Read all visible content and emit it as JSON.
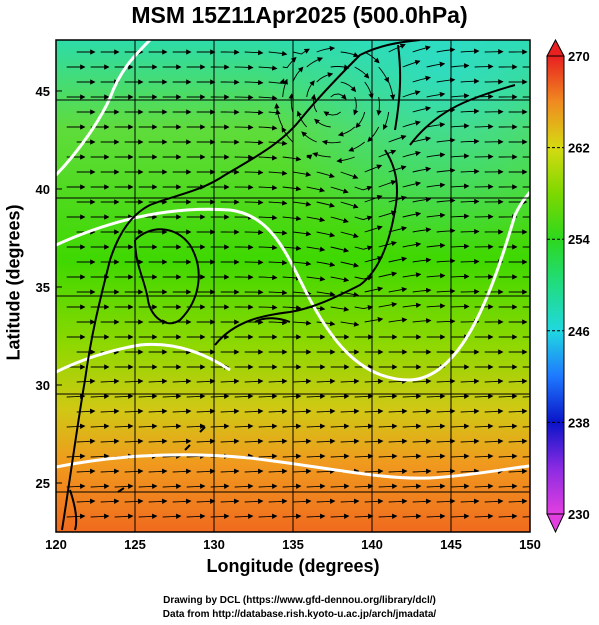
{
  "title": "MSM 15Z11Apr2025 (500.0hPa)",
  "xlabel": "Longitude (degrees)",
  "ylabel": "Latitude  (degrees)",
  "credit_line1": "Drawing by DCL (https://www.gfd-dennou.org/library/dcl/)",
  "credit_line2": "Data from http://database.rish.kyoto-u.ac.jp/arch/jmadata/",
  "colors": {
    "warm": "#f07a1e",
    "mid": "#3fd800",
    "cool": "#2ddca8",
    "contour": "#ffffff",
    "coast": "#000000"
  },
  "chart_data": {
    "type": "heatmap",
    "field": "500hPa temperature (K) with wind streamlines",
    "xlim": [
      120,
      150
    ],
    "ylim": [
      22.5,
      47.6
    ],
    "x_ticks": [
      120,
      125,
      130,
      135,
      140,
      145,
      150
    ],
    "y_ticks": [
      25,
      30,
      35,
      40,
      45
    ],
    "grid": true,
    "colorbar": {
      "min": 230,
      "max": 270,
      "tick_labels": [
        270,
        262,
        254,
        246,
        238,
        230
      ],
      "stops": [
        {
          "value": 230,
          "color": "#e23fe0"
        },
        {
          "value": 234,
          "color": "#8a2be2"
        },
        {
          "value": 238,
          "color": "#0a14c8"
        },
        {
          "value": 242,
          "color": "#1e78ff"
        },
        {
          "value": 246,
          "color": "#20d8e0"
        },
        {
          "value": 250,
          "color": "#20dc82"
        },
        {
          "value": 254,
          "color": "#2dd81e"
        },
        {
          "value": 258,
          "color": "#7ed800"
        },
        {
          "value": 262,
          "color": "#d6da12"
        },
        {
          "value": 266,
          "color": "#f08a20"
        },
        {
          "value": 270,
          "color": "#e82020"
        }
      ]
    }
  }
}
